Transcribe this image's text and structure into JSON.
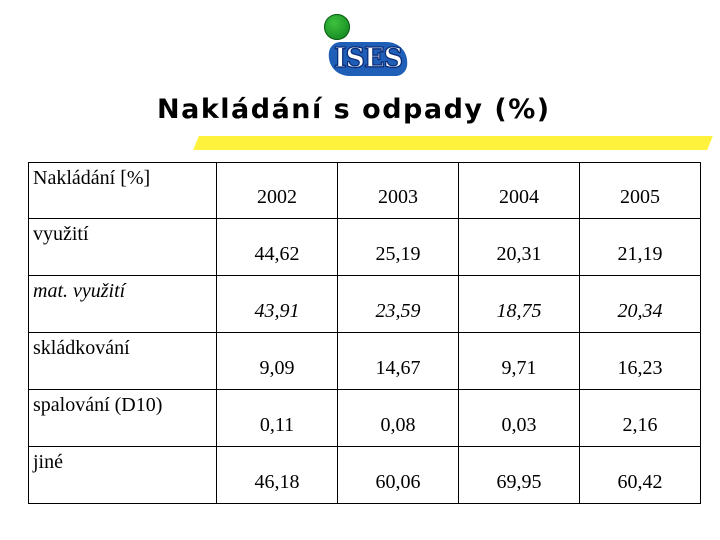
{
  "logo": {
    "text": "ISES"
  },
  "title": "Nakládání s odpady (%)",
  "colors": {
    "accent_bar": "#fff23c",
    "logo_ball": "#1a9a2a",
    "logo_plate": "#1f5fb7"
  },
  "table": {
    "header": [
      "Nakládání [%]",
      "2002",
      "2003",
      "2004",
      "2005"
    ],
    "rows": [
      {
        "label": "využití",
        "values": [
          "44,62",
          "25,19",
          "20,31",
          "21,19"
        ],
        "italic": false
      },
      {
        "label": "mat. využití",
        "values": [
          "43,91",
          "23,59",
          "18,75",
          "20,34"
        ],
        "italic": true
      },
      {
        "label": "skládkování",
        "values": [
          "9,09",
          "14,67",
          "9,71",
          "16,23"
        ],
        "italic": false
      },
      {
        "label": "spalování (D10)",
        "values": [
          "0,11",
          "0,08",
          "0,03",
          "2,16"
        ],
        "italic": false
      },
      {
        "label": "jiné",
        "values": [
          "46,18",
          "60,06",
          "69,95",
          "60,42"
        ],
        "italic": false
      }
    ]
  }
}
